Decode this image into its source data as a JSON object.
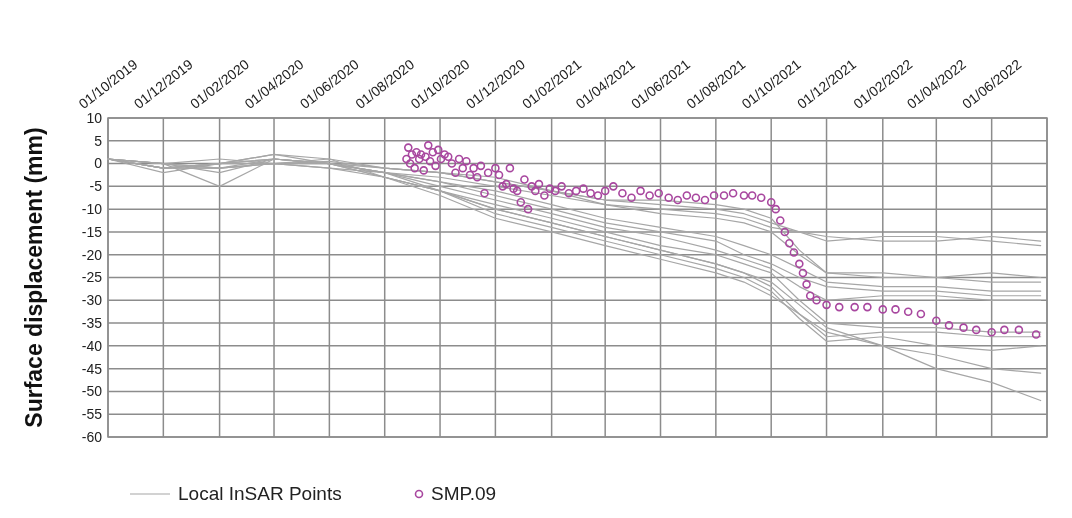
{
  "chart_data": {
    "type": "line",
    "ylabel": "Surface displacement (mm)",
    "grid": true,
    "legend": "bottom left",
    "x": [
      "2019-10-01",
      "2019-12-01",
      "2020-02-01",
      "2020-04-01",
      "2020-06-01",
      "2020-08-01",
      "2020-10-01",
      "2020-12-01",
      "2021-02-01",
      "2021-04-01",
      "2021-06-01",
      "2021-08-01",
      "2021-09-01",
      "2021-10-01",
      "2021-11-01",
      "2021-12-01",
      "2022-02-01",
      "2022-04-01",
      "2022-06-01",
      "2022-07-25"
    ],
    "xlim": [
      "2019-10-01",
      "2022-08-01"
    ],
    "xticks": [
      {
        "value": "2019-10-01",
        "label": "01/10/2019"
      },
      {
        "value": "2019-12-01",
        "label": "01/12/2019"
      },
      {
        "value": "2020-02-01",
        "label": "01/02/2020"
      },
      {
        "value": "2020-04-01",
        "label": "01/04/2020"
      },
      {
        "value": "2020-06-01",
        "label": "01/06/2020"
      },
      {
        "value": "2020-08-01",
        "label": "01/08/2020"
      },
      {
        "value": "2020-10-01",
        "label": "01/10/2020"
      },
      {
        "value": "2020-12-01",
        "label": "01/12/2020"
      },
      {
        "value": "2021-02-01",
        "label": "01/02/2021"
      },
      {
        "value": "2021-04-01",
        "label": "01/04/2021"
      },
      {
        "value": "2021-06-01",
        "label": "01/06/2021"
      },
      {
        "value": "2021-08-01",
        "label": "01/08/2021"
      },
      {
        "value": "2021-10-01",
        "label": "01/10/2021"
      },
      {
        "value": "2021-12-01",
        "label": "01/12/2021"
      },
      {
        "value": "2022-02-01",
        "label": "01/02/2022"
      },
      {
        "value": "2022-04-01",
        "label": "01/04/2022"
      },
      {
        "value": "2022-06-01",
        "label": "01/06/2022"
      },
      {
        "value": "2022-08-01",
        "label": null
      }
    ],
    "ylim": [
      -60,
      10
    ],
    "yticks": [
      10,
      5,
      0,
      -5,
      -10,
      -15,
      -20,
      -25,
      -30,
      -35,
      -40,
      -45,
      -50,
      -55,
      -60
    ],
    "series": [
      {
        "name": "Local InSAR Points",
        "color": "#a6a6a6",
        "values": [
          1,
          0,
          1,
          0,
          0.5,
          -1,
          -2,
          -4,
          -6,
          -8,
          -9,
          -10,
          -11,
          -13,
          -15,
          -17,
          -16,
          -16,
          -17,
          -18
        ]
      },
      {
        "color": "#a6a6a6",
        "values": [
          1,
          -1,
          0,
          1,
          0,
          -1,
          -2,
          -3,
          -6,
          -9,
          -10,
          -11,
          -12,
          -14,
          -15,
          -16,
          -17,
          -17,
          -16,
          -17
        ]
      },
      {
        "color": "#a6a6a6",
        "values": [
          1,
          0,
          -1,
          0,
          0,
          -2,
          -3,
          -5,
          -7,
          -9,
          -11,
          -12,
          -13,
          -15,
          -20,
          -24,
          -24,
          -25,
          -24,
          -25
        ]
      },
      {
        "color": "#a6a6a6",
        "values": [
          1,
          -1,
          0,
          2,
          1,
          -1,
          -2,
          -4,
          -6,
          -8,
          -8,
          -9,
          -10,
          -12,
          -19,
          -24,
          -25,
          -25,
          -26,
          -26
        ]
      },
      {
        "color": "#a6a6a6",
        "values": [
          1,
          -1,
          -1,
          1,
          0,
          -2,
          -4,
          -6,
          -9,
          -12,
          -14,
          -16,
          -18,
          -20,
          -23,
          -26,
          -27,
          -27,
          -28,
          -28
        ]
      },
      {
        "color": "#a6a6a6",
        "values": [
          1,
          -2,
          0,
          0,
          -1,
          -2,
          -4,
          -7,
          -10,
          -13,
          -15,
          -17,
          -20,
          -22,
          -25,
          -27,
          -28,
          -28,
          -29,
          -29
        ]
      },
      {
        "color": "#a6a6a6",
        "values": [
          1,
          0,
          -2,
          1,
          0,
          -2,
          -5,
          -8,
          -11,
          -14,
          -16,
          -19,
          -21,
          -23,
          -27,
          -30,
          -29,
          -29,
          -30,
          -30
        ]
      },
      {
        "color": "#a6a6a6",
        "values": [
          1,
          -1,
          -1,
          0,
          -1,
          -3,
          -6,
          -9,
          -12,
          -15,
          -18,
          -20,
          -22,
          -24,
          -30,
          -35,
          -36,
          -36,
          -37,
          -37
        ]
      },
      {
        "color": "#a6a6a6",
        "values": [
          1,
          0,
          -5,
          1,
          0,
          -3,
          -6,
          -10,
          -13,
          -16,
          -19,
          -22,
          -24,
          -27,
          -33,
          -38,
          -37,
          -37,
          -38,
          -38
        ]
      },
      {
        "color": "#a6a6a6",
        "values": [
          1,
          -1,
          0,
          1,
          0,
          -2,
          -6,
          -11,
          -14,
          -17,
          -20,
          -23,
          -25,
          -28,
          -34,
          -39,
          -38,
          -40,
          -41,
          -40
        ]
      },
      {
        "color": "#a6a6a6",
        "values": [
          1,
          0,
          -1,
          0,
          1,
          -3,
          -6,
          -10,
          -13,
          -16,
          -19,
          -22,
          -24,
          -26,
          -31,
          -36,
          -40,
          -42,
          -45,
          -46
        ]
      },
      {
        "color": "#a6a6a6",
        "values": [
          1,
          -1,
          0,
          2,
          0,
          -3,
          -7,
          -12,
          -15,
          -18,
          -21,
          -24,
          -26,
          -29,
          -33,
          -37,
          -40,
          -45,
          -48,
          -52
        ]
      },
      {
        "name": "SMP.09",
        "type": "scatter",
        "marker": "circle",
        "color": "#a8479f",
        "x": [
          "2020-08-25",
          "2020-08-27",
          "2020-08-29",
          "2020-08-31",
          "2020-09-03",
          "2020-09-05",
          "2020-09-08",
          "2020-09-10",
          "2020-09-13",
          "2020-09-15",
          "2020-09-18",
          "2020-09-20",
          "2020-09-23",
          "2020-09-26",
          "2020-09-29",
          "2020-10-02",
          "2020-10-06",
          "2020-10-10",
          "2020-10-14",
          "2020-10-18",
          "2020-10-22",
          "2020-10-26",
          "2020-10-30",
          "2020-11-03",
          "2020-11-07",
          "2020-11-11",
          "2020-11-15",
          "2020-11-19",
          "2020-11-23",
          "2020-12-01",
          "2020-12-05",
          "2020-12-09",
          "2020-12-13",
          "2020-12-17",
          "2020-12-21",
          "2020-12-25",
          "2020-12-29",
          "2021-01-02",
          "2021-01-06",
          "2021-01-10",
          "2021-01-14",
          "2021-01-18",
          "2021-01-24",
          "2021-01-30",
          "2021-02-05",
          "2021-02-12",
          "2021-02-20",
          "2021-02-28",
          "2021-03-08",
          "2021-03-16",
          "2021-03-24",
          "2021-04-01",
          "2021-04-10",
          "2021-04-20",
          "2021-04-30",
          "2021-05-10",
          "2021-05-20",
          "2021-05-30",
          "2021-06-10",
          "2021-06-20",
          "2021-06-30",
          "2021-07-10",
          "2021-07-20",
          "2021-07-30",
          "2021-08-10",
          "2021-08-20",
          "2021-09-01",
          "2021-09-10",
          "2021-09-20",
          "2021-10-01",
          "2021-10-06",
          "2021-10-11",
          "2021-10-16",
          "2021-10-21",
          "2021-10-26",
          "2021-11-01",
          "2021-11-05",
          "2021-11-09",
          "2021-11-13",
          "2021-11-20",
          "2021-12-01",
          "2021-12-15",
          "2022-01-01",
          "2022-01-15",
          "2022-02-01",
          "2022-02-15",
          "2022-03-01",
          "2022-03-15",
          "2022-04-01",
          "2022-04-15",
          "2022-05-01",
          "2022-05-15",
          "2022-06-01",
          "2022-06-15",
          "2022-07-01",
          "2022-07-20"
        ],
        "values": [
          1,
          3.5,
          0,
          2,
          -1,
          2.5,
          1,
          2,
          -1.5,
          1.5,
          4,
          0.5,
          2.5,
          -0.5,
          3,
          1,
          2,
          1.5,
          0,
          -2,
          1,
          -1,
          0.5,
          -2.5,
          -1,
          -3,
          -0.5,
          -6.5,
          -2,
          -1,
          -2.5,
          -5,
          -4.5,
          -1,
          -5.5,
          -6,
          -8.5,
          -3.5,
          -10,
          -5,
          -6,
          -4.5,
          -7,
          -5.5,
          -6,
          -5,
          -6.5,
          -6,
          -5.5,
          -6.5,
          -7,
          -6,
          -5,
          -6.5,
          -7.5,
          -6,
          -7,
          -6.5,
          -7.5,
          -8,
          -7,
          -7.5,
          -8,
          -7,
          -7,
          -6.5,
          -7,
          -7,
          -7.5,
          -8.5,
          -10,
          -12.5,
          -15,
          -17.5,
          -19.5,
          -22,
          -24,
          -26.5,
          -29,
          -30,
          -31,
          -31.5,
          -31.5,
          -31.5,
          -32,
          -32,
          -32.5,
          -33,
          -34.5,
          -35.5,
          -36,
          -36.5,
          -37,
          -36.5,
          -36.5,
          -37.5
        ]
      }
    ]
  }
}
